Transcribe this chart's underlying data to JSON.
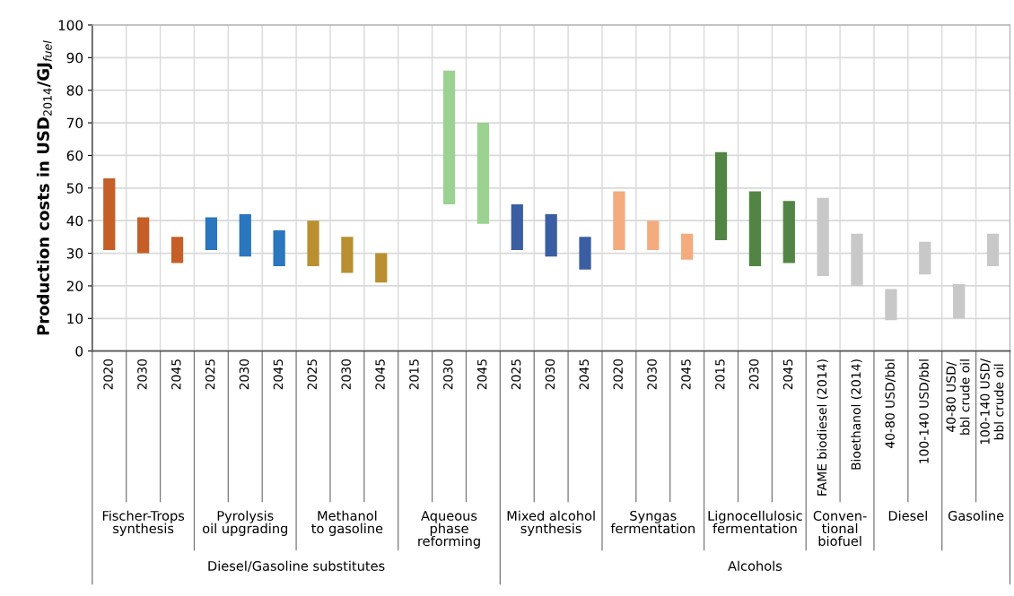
{
  "chart_data": {
    "type": "bar",
    "ylabel": "Production costs in USD$_{2014}$/GJ$_{fuel}$",
    "categories": [
      "2020",
      "2030",
      "2045",
      "2025",
      "2030",
      "2045",
      "2025",
      "2030",
      "2045",
      "2015",
      "2030",
      "2045",
      "2025",
      "2030",
      "2045",
      "2020",
      "2030",
      "2045",
      "2015",
      "2030",
      "2045",
      "FAME biodiesel (2014)",
      "Bioethanol (2014)",
      "40-80 USD/bbl",
      "100-140 USD/bbl",
      "40-80 USD/\nbbl crude oil",
      "100-140 USD/\nbbl crude oil"
    ],
    "base": [
      31,
      30,
      27,
      31,
      29,
      26,
      26,
      24,
      21,
      null,
      45,
      39,
      31,
      29,
      25,
      31,
      31,
      28,
      34,
      26,
      27,
      23,
      20,
      9.5,
      23.5,
      10,
      26
    ],
    "values": [
      22,
      11,
      8,
      10,
      13,
      11,
      14,
      11,
      9,
      null,
      41,
      31,
      14,
      13,
      10,
      18,
      9,
      8,
      27,
      23,
      19,
      24,
      16,
      9.5,
      10,
      10.5,
      10
    ],
    "colors": [
      "#c55f27",
      "#c55f27",
      "#c55f27",
      "#2a76bf",
      "#2a76bf",
      "#2a76bf",
      "#b98f31",
      "#b98f31",
      "#b98f31",
      "#9bd291",
      "#9bd291",
      "#9bd291",
      "#3a5ea1",
      "#3a5ea1",
      "#3a5ea1",
      "#f4ab7e",
      "#f4ab7e",
      "#f4ab7e",
      "#528543",
      "#528543",
      "#528543",
      "#c8c8c8",
      "#c8c8c8",
      "#c8c8c8",
      "#c8c8c8",
      "#c8c8c8",
      "#c8c8c8"
    ],
    "ylim": [
      0,
      100
    ],
    "yticks": [
      0,
      10,
      20,
      30,
      40,
      50,
      60,
      70,
      80,
      90,
      100
    ],
    "grid": true,
    "annotations": [
      "Fischer-Trops\nsynthesis",
      "Pyrolysis\noil upgrading",
      "Methanol\nto gasoline",
      "Aqueous\nphase\nreforming",
      "Mixed alcohol\nsynthesis",
      "Syngas\nfermentation",
      "Lignocellulosic\nfermentation",
      "Conven-\ntional\nbiofuel",
      "Diesel",
      "Gasoline",
      "Diesel/Gasoline substitutes",
      "Alcohols"
    ]
  }
}
